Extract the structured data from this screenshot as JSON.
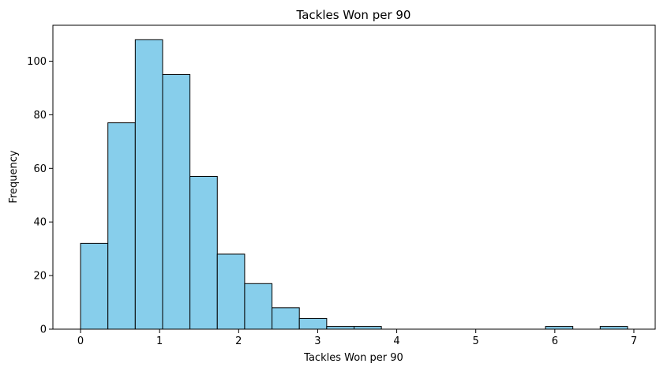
{
  "chart_data": {
    "type": "bar",
    "title": "Tackles Won per 90",
    "xlabel": "Tackles Won per 90",
    "ylabel": "Frequency",
    "bar_color": "#87ceeb",
    "edge_color": "#000000",
    "bin_start": 0.0,
    "bin_end": 6.92,
    "bin_count": 20,
    "values": [
      32,
      77,
      108,
      95,
      57,
      28,
      17,
      8,
      4,
      1,
      1,
      0,
      0,
      0,
      0,
      0,
      0,
      1,
      0,
      1
    ],
    "xlim": [
      -0.35,
      7.27
    ],
    "ylim": [
      0,
      113.4
    ],
    "xticks": [
      "0",
      "1",
      "2",
      "3",
      "4",
      "5",
      "6",
      "7"
    ],
    "yticks": [
      "0",
      "20",
      "40",
      "60",
      "80",
      "100"
    ],
    "grid": false,
    "legend": false
  }
}
